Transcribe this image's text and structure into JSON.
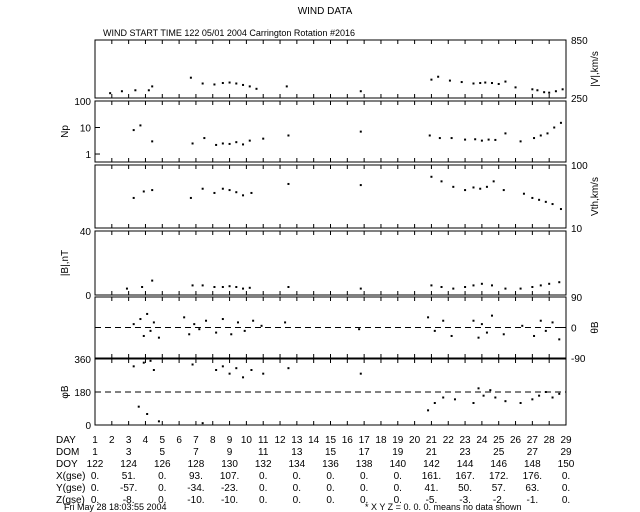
{
  "title": "WIND DATA",
  "subtitle": "WIND START TIME 122 05/01 2004 Carrington Rotation #2016",
  "footer_left": "Fri May 28 18:03:55 2004",
  "footer_right": "* X Y Z = 0. 0. 0. means no data shown",
  "chart_data": [
    {
      "type": "scatter",
      "panel": "speed",
      "ylabel_right": "|V|,km/s",
      "yticks_right": [
        "850",
        "250"
      ],
      "ylim": [
        250,
        850
      ],
      "points": [
        [
          1.9,
          300
        ],
        [
          2.6,
          320
        ],
        [
          3.4,
          330
        ],
        [
          4.2,
          330
        ],
        [
          4.4,
          370
        ],
        [
          6.7,
          460
        ],
        [
          7.4,
          400
        ],
        [
          8.1,
          390
        ],
        [
          8.6,
          405
        ],
        [
          9.0,
          410
        ],
        [
          9.4,
          400
        ],
        [
          9.8,
          385
        ],
        [
          10.2,
          370
        ],
        [
          10.6,
          345
        ],
        [
          12.4,
          370
        ],
        [
          16.8,
          320
        ],
        [
          21.0,
          440
        ],
        [
          21.4,
          470
        ],
        [
          22.1,
          430
        ],
        [
          22.8,
          415
        ],
        [
          23.5,
          400
        ],
        [
          23.9,
          405
        ],
        [
          24.2,
          410
        ],
        [
          24.6,
          405
        ],
        [
          25.0,
          395
        ],
        [
          25.4,
          420
        ],
        [
          26.0,
          360
        ],
        [
          27.0,
          340
        ],
        [
          27.3,
          330
        ],
        [
          27.7,
          310
        ],
        [
          28.0,
          305
        ],
        [
          28.4,
          320
        ],
        [
          28.8,
          340
        ]
      ]
    },
    {
      "type": "scatter",
      "panel": "density",
      "ylabel_left": "Np",
      "yticks_left": [
        "100",
        "10",
        "1"
      ],
      "ylim": [
        0.5,
        100
      ],
      "log": true,
      "points": [
        [
          3.3,
          8
        ],
        [
          3.7,
          12
        ],
        [
          4.4,
          3
        ],
        [
          6.8,
          2.5
        ],
        [
          7.5,
          4
        ],
        [
          8.2,
          2.2
        ],
        [
          8.6,
          2.5
        ],
        [
          9.0,
          2.4
        ],
        [
          9.4,
          2.8
        ],
        [
          9.8,
          2.3
        ],
        [
          10.2,
          3.2
        ],
        [
          11.0,
          3.8
        ],
        [
          12.5,
          5
        ],
        [
          16.8,
          7
        ],
        [
          20.9,
          5
        ],
        [
          21.5,
          4
        ],
        [
          22.2,
          4
        ],
        [
          23.0,
          3.5
        ],
        [
          23.6,
          3.6
        ],
        [
          24.0,
          3.2
        ],
        [
          24.4,
          3.5
        ],
        [
          24.8,
          3.4
        ],
        [
          25.4,
          6
        ],
        [
          26.3,
          3
        ],
        [
          27.1,
          4
        ],
        [
          27.5,
          5
        ],
        [
          27.9,
          6
        ],
        [
          28.3,
          10
        ],
        [
          28.7,
          15
        ]
      ]
    },
    {
      "type": "scatter",
      "panel": "thermal-speed",
      "ylabel_right": "Vth,km/s",
      "yticks_right": [
        "100",
        "10"
      ],
      "ylim": [
        10,
        100
      ],
      "log": true,
      "points": [
        [
          3.3,
          30
        ],
        [
          3.9,
          38
        ],
        [
          4.4,
          40
        ],
        [
          6.7,
          30
        ],
        [
          7.4,
          42
        ],
        [
          8.1,
          36
        ],
        [
          8.6,
          42
        ],
        [
          9.0,
          40
        ],
        [
          9.4,
          37
        ],
        [
          9.8,
          33
        ],
        [
          10.3,
          36
        ],
        [
          12.5,
          50
        ],
        [
          16.8,
          48
        ],
        [
          21.0,
          65
        ],
        [
          21.6,
          55
        ],
        [
          22.3,
          45
        ],
        [
          23.0,
          40
        ],
        [
          23.5,
          44
        ],
        [
          23.9,
          42
        ],
        [
          24.3,
          45
        ],
        [
          24.7,
          55
        ],
        [
          25.3,
          40
        ],
        [
          26.5,
          35
        ],
        [
          27.0,
          30
        ],
        [
          27.4,
          28
        ],
        [
          27.8,
          26
        ],
        [
          28.2,
          24
        ],
        [
          28.7,
          20
        ]
      ]
    },
    {
      "type": "scatter",
      "panel": "field-magnitude",
      "ylabel_left": "|B|,nT",
      "yticks_left": [
        "40",
        "0"
      ],
      "ylim": [
        0,
        40
      ],
      "points": [
        [
          2.9,
          4
        ],
        [
          3.8,
          5
        ],
        [
          4.4,
          9
        ],
        [
          6.8,
          6
        ],
        [
          7.4,
          6
        ],
        [
          8.1,
          5
        ],
        [
          8.6,
          5
        ],
        [
          9.0,
          5.5
        ],
        [
          9.4,
          5
        ],
        [
          9.8,
          4
        ],
        [
          10.2,
          4.5
        ],
        [
          12.5,
          5
        ],
        [
          16.8,
          4
        ],
        [
          21.0,
          6
        ],
        [
          21.6,
          5
        ],
        [
          22.3,
          4
        ],
        [
          23.0,
          5
        ],
        [
          23.5,
          6
        ],
        [
          24.0,
          7
        ],
        [
          24.6,
          6
        ],
        [
          25.4,
          4
        ],
        [
          26.3,
          4
        ],
        [
          27.0,
          5
        ],
        [
          27.5,
          6
        ],
        [
          28.0,
          7
        ],
        [
          28.6,
          8
        ]
      ]
    },
    {
      "type": "scatter",
      "panel": "theta-b",
      "ylabel_right": "θB",
      "yticks_right": [
        "90",
        "0",
        "-90"
      ],
      "ylim": [
        -90,
        90
      ],
      "reference_line": 0,
      "points": [
        [
          3.3,
          10
        ],
        [
          3.7,
          25
        ],
        [
          3.9,
          -25
        ],
        [
          4.1,
          40
        ],
        [
          4.3,
          -10
        ],
        [
          4.5,
          15
        ],
        [
          4.8,
          -30
        ],
        [
          6.3,
          30
        ],
        [
          6.6,
          -20
        ],
        [
          6.9,
          10
        ],
        [
          7.2,
          -5
        ],
        [
          7.6,
          20
        ],
        [
          8.2,
          -15
        ],
        [
          8.6,
          25
        ],
        [
          9.1,
          -20
        ],
        [
          9.5,
          15
        ],
        [
          9.9,
          -10
        ],
        [
          10.4,
          20
        ],
        [
          10.9,
          5
        ],
        [
          12.3,
          15
        ],
        [
          16.7,
          -5
        ],
        [
          20.8,
          30
        ],
        [
          21.2,
          -10
        ],
        [
          21.7,
          20
        ],
        [
          22.2,
          -25
        ],
        [
          23.5,
          20
        ],
        [
          23.8,
          -30
        ],
        [
          24.0,
          10
        ],
        [
          24.3,
          -15
        ],
        [
          24.6,
          35
        ],
        [
          25.3,
          -20
        ],
        [
          26.4,
          5
        ],
        [
          27.1,
          -25
        ],
        [
          27.5,
          20
        ],
        [
          27.8,
          -10
        ],
        [
          28.2,
          15
        ],
        [
          28.6,
          -35
        ]
      ]
    },
    {
      "type": "scatter",
      "panel": "phi-b",
      "ylabel_left": "φB",
      "yticks_left": [
        "360",
        "180",
        "0"
      ],
      "ylim": [
        0,
        360
      ],
      "reference_line": 180,
      "points": [
        [
          3.3,
          320
        ],
        [
          3.6,
          100
        ],
        [
          3.9,
          340
        ],
        [
          4.1,
          60
        ],
        [
          4.3,
          350
        ],
        [
          4.5,
          300
        ],
        [
          4.8,
          20
        ],
        [
          6.8,
          330
        ],
        [
          7.4,
          10
        ],
        [
          8.2,
          300
        ],
        [
          8.6,
          320
        ],
        [
          9.0,
          280
        ],
        [
          9.4,
          310
        ],
        [
          9.8,
          260
        ],
        [
          10.3,
          300
        ],
        [
          11.0,
          280
        ],
        [
          12.5,
          310
        ],
        [
          16.8,
          280
        ],
        [
          20.8,
          80
        ],
        [
          21.2,
          120
        ],
        [
          21.7,
          150
        ],
        [
          22.4,
          140
        ],
        [
          23.5,
          120
        ],
        [
          23.8,
          200
        ],
        [
          24.1,
          160
        ],
        [
          24.5,
          190
        ],
        [
          24.8,
          150
        ],
        [
          25.4,
          130
        ],
        [
          26.3,
          120
        ],
        [
          27.0,
          140
        ],
        [
          27.4,
          160
        ],
        [
          27.8,
          180
        ],
        [
          28.2,
          150
        ],
        [
          28.6,
          170
        ]
      ]
    }
  ],
  "x_axis": {
    "ticks": [
      1,
      2,
      3,
      4,
      5,
      6,
      7,
      8,
      9,
      10,
      11,
      12,
      13,
      14,
      15,
      16,
      17,
      18,
      19,
      20,
      21,
      22,
      23,
      24,
      25,
      26,
      27,
      28,
      29
    ],
    "xlim": [
      1,
      29
    ]
  },
  "table": {
    "row_labels": [
      "DAY",
      "DOM",
      "DOY",
      "X(gse)",
      "Y(gse)",
      "Z(gse)"
    ],
    "day": [
      "1",
      "2",
      "3",
      "4",
      "5",
      "6",
      "7",
      "8",
      "9",
      "10",
      "11",
      "12",
      "13",
      "14",
      "15",
      "16",
      "17",
      "18",
      "19",
      "20",
      "21",
      "22",
      "23",
      "24",
      "25",
      "26",
      "27",
      "28",
      "29"
    ],
    "dom": [
      "1",
      "3",
      "5",
      "7",
      "9",
      "11",
      "13",
      "15",
      "17",
      "19",
      "21",
      "23",
      "25",
      "27",
      "29"
    ],
    "doy": [
      "122",
      "124",
      "126",
      "128",
      "130",
      "132",
      "134",
      "136",
      "138",
      "140",
      "142",
      "144",
      "146",
      "148",
      "150"
    ],
    "xgse": [
      "0.",
      "51.",
      "0.",
      "93.",
      "107.",
      "0.",
      "0.",
      "0.",
      "0.",
      "0.",
      "161.",
      "167.",
      "172.",
      "176.",
      "0."
    ],
    "ygse": [
      "0.",
      "-57.",
      "0.",
      "-34.",
      "-23.",
      "0.",
      "0.",
      "0.",
      "0.",
      "0.",
      "41.",
      "50.",
      "57.",
      "63.",
      "0."
    ],
    "zgse": [
      "0.",
      "-8.",
      "0.",
      "-10.",
      "-10.",
      "0.",
      "0.",
      "0.",
      "0.",
      "0.",
      "-5.",
      "-3.",
      "-2.",
      "-1.",
      "0."
    ]
  }
}
